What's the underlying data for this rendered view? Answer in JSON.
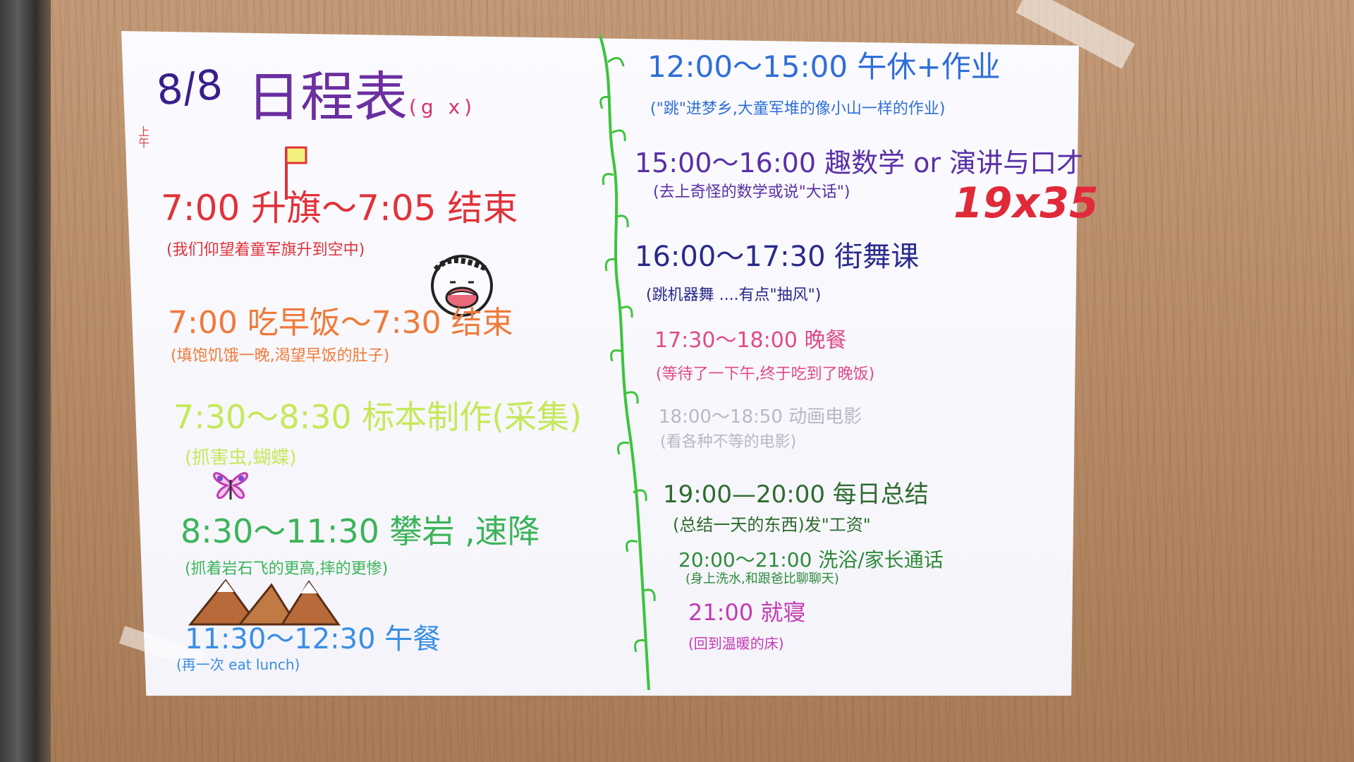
{
  "header": {
    "date": "8/8",
    "title": "日程表",
    "title_note": "(g x)",
    "period": "上午"
  },
  "badge_number": "19x35",
  "left_column": [
    {
      "time": "7:00 升旗～7:05 结束",
      "note": "(我们仰望着童军旗升到空中)",
      "color": "#e0323a"
    },
    {
      "time": "7:00 吃早饭～7:30 结束",
      "note": "(填饱饥饿一晚,渴望早饭的肚子)",
      "color": "#f07a3a"
    },
    {
      "time": "7:30～8:30 标本制作(采集)",
      "note": "(抓害虫,蝴蝶)",
      "color": "#c6e85a"
    },
    {
      "time": "8:30～11:30 攀岩 ,速降",
      "note": "(抓着岩石飞的更高,摔的更惨)",
      "color": "#3cb45a"
    },
    {
      "time": "11:30～12:30 午餐",
      "note": "(再一次 eat lunch)",
      "color": "#3a8ee6"
    }
  ],
  "right_column": [
    {
      "time": "12:00～15:00 午休+作业",
      "note": "(\"跳\"进梦乡,大童军堆的像小山一样的作业)",
      "color": "#2f6ed8"
    },
    {
      "time": "15:00～16:00 趣数学 or 演讲与口才",
      "note": "(去上奇怪的数学或说\"大话\")",
      "color": "#5a2fa6"
    },
    {
      "time": "16:00～17:30 街舞课",
      "note": "(跳机器舞 ....有点\"抽风\")",
      "color": "#2a2a8c"
    },
    {
      "time": "17:30～18:00 晚餐",
      "note": "(等待了一下午,终于吃到了晚饭)",
      "color": "#e04a8a"
    },
    {
      "time": "18:00～18:50 动画电影",
      "note": "(看各种不等的电影)",
      "color": "#b7b7c7"
    },
    {
      "time": "19:00—20:00 每日总结",
      "note": "(总结一天的东西)发\"工资\"",
      "color": "#2e6b2e"
    },
    {
      "time": "20:00～21:00 洗浴/家长通话",
      "note": "(身上洗水,和跟爸比聊聊天)",
      "color": "#2f8a3a"
    },
    {
      "time": "21:00 就寝",
      "note": "(回到温暖的床)",
      "color": "#c43ab4"
    }
  ],
  "colors": {
    "paper": "#f7f7fc",
    "vine": "#3cc43c",
    "title": "#6b2fa0",
    "number": "#e02a3a"
  }
}
